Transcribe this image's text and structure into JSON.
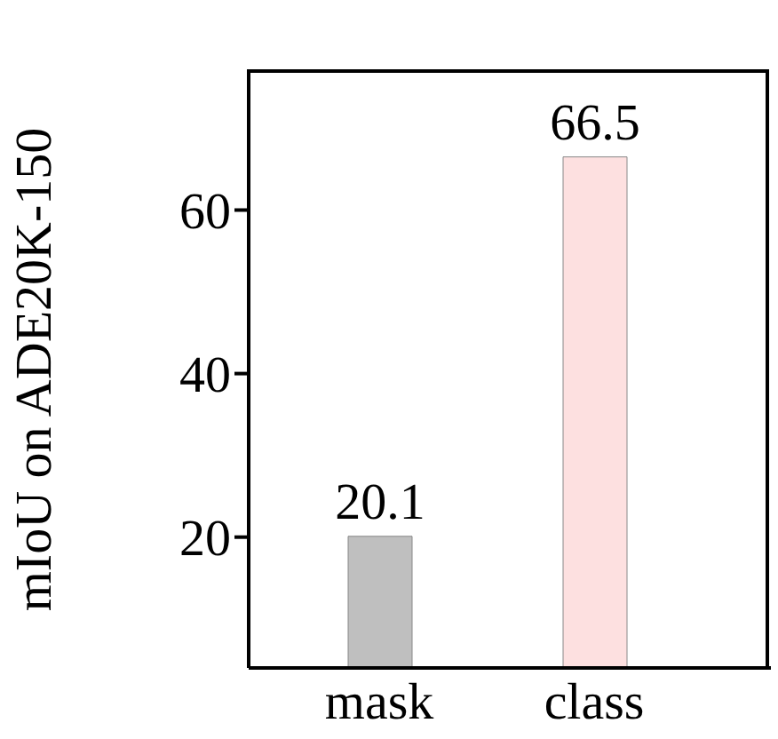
{
  "chart_data": {
    "type": "bar",
    "ylabel": "mIoU on ADE20K-150",
    "categories": [
      "mask",
      "class"
    ],
    "values": [
      20.1,
      66.5
    ],
    "colors": [
      "#bfbfbf",
      "#fde0e0"
    ],
    "ylim": [
      4,
      77
    ],
    "yticks": [
      20,
      40,
      60
    ],
    "data_labels": true,
    "grid": false
  }
}
